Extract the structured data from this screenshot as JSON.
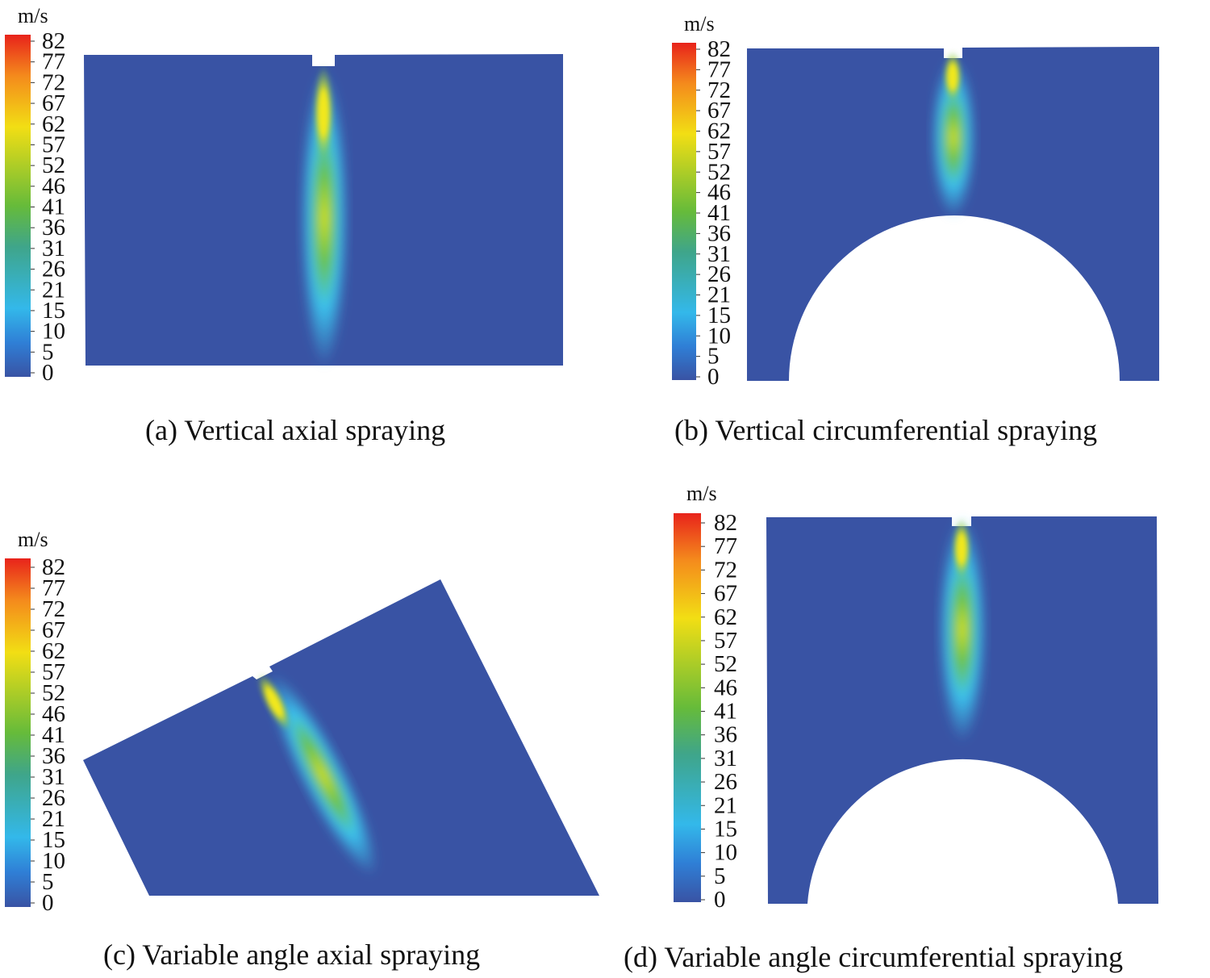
{
  "colorbar": {
    "unit": "m/s",
    "ticks": [
      "82",
      "77",
      "72",
      "67",
      "62",
      "57",
      "52",
      "46",
      "41",
      "36",
      "31",
      "26",
      "21",
      "15",
      "10",
      "5",
      "0"
    ],
    "colors": [
      "#e8231b",
      "#f48a1c",
      "#f2de14",
      "#66bb3a",
      "#3fa58a",
      "#33b8ea",
      "#2f7fd6",
      "#3953a4"
    ]
  },
  "domain_colors": {
    "background_flow": "#3953a4",
    "jet_core": "#f2e81a",
    "jet_mid": "#6cc244",
    "jet_outer": "#3cc4ee"
  },
  "panels": [
    {
      "id": "a",
      "caption": "(a) Vertical axial spraying"
    },
    {
      "id": "b",
      "caption": "(b) Vertical circumferential spraying"
    },
    {
      "id": "c",
      "caption": "(c) Variable angle axial spraying"
    },
    {
      "id": "d",
      "caption": "(d) Variable angle circumferential spraying"
    }
  ]
}
